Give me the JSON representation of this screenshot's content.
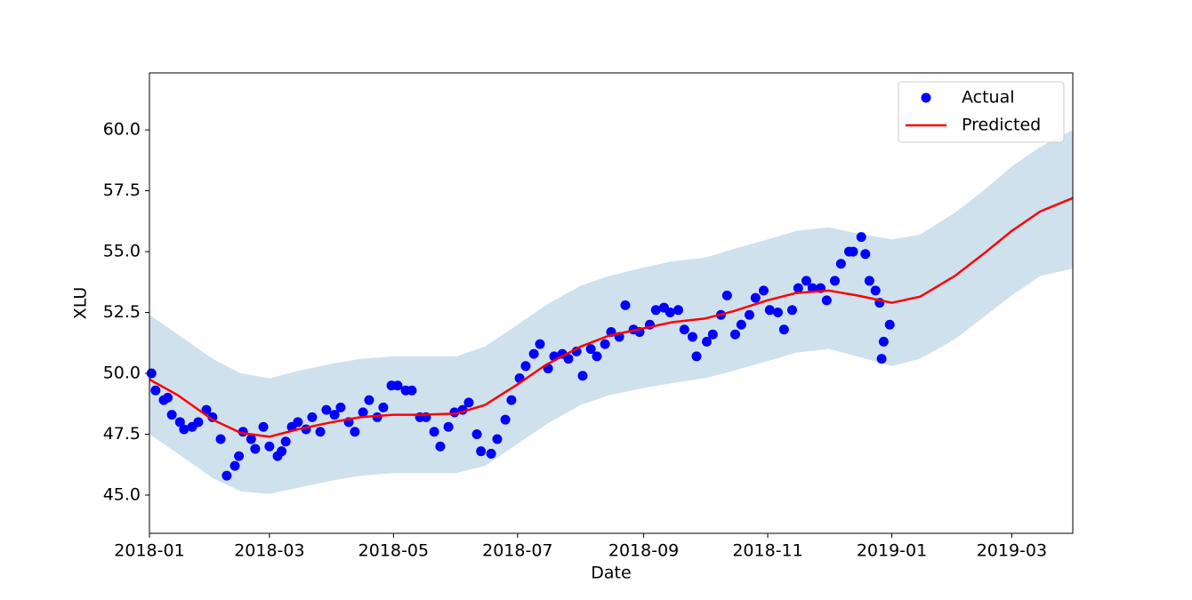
{
  "chart_data": {
    "type": "line",
    "xlabel": "Date",
    "ylabel": "XLU",
    "xlim": [
      "2018-01-01",
      "2019-03-31"
    ],
    "ylim": [
      43.43,
      62.34
    ],
    "xticks": [
      {
        "value": "2018-01-01",
        "label": "2018-01"
      },
      {
        "value": "2018-03-01",
        "label": "2018-03"
      },
      {
        "value": "2018-05-01",
        "label": "2018-05"
      },
      {
        "value": "2018-07-01",
        "label": "2018-07"
      },
      {
        "value": "2018-09-01",
        "label": "2018-09"
      },
      {
        "value": "2018-11-01",
        "label": "2018-11"
      },
      {
        "value": "2019-01-01",
        "label": "2019-01"
      },
      {
        "value": "2019-03-01",
        "label": "2019-03"
      }
    ],
    "yticks": [
      {
        "value": 45,
        "label": "45.0"
      },
      {
        "value": 47.5,
        "label": "47.5"
      },
      {
        "value": 50,
        "label": "50.0"
      },
      {
        "value": 52.5,
        "label": "52.5"
      },
      {
        "value": 55,
        "label": "55.0"
      },
      {
        "value": 57.5,
        "label": "57.5"
      },
      {
        "value": 60,
        "label": "60.0"
      }
    ],
    "legend": "upper right",
    "series": [
      {
        "name": "Actual",
        "type": "scatter",
        "color": "#0000ff",
        "x": [
          "2018-01-02",
          "2018-01-04",
          "2018-01-08",
          "2018-01-10",
          "2018-01-12",
          "2018-01-16",
          "2018-01-18",
          "2018-01-22",
          "2018-01-25",
          "2018-01-29",
          "2018-02-01",
          "2018-02-05",
          "2018-02-08",
          "2018-02-12",
          "2018-02-14",
          "2018-02-16",
          "2018-02-20",
          "2018-02-22",
          "2018-02-26",
          "2018-03-01",
          "2018-03-05",
          "2018-03-07",
          "2018-03-09",
          "2018-03-12",
          "2018-03-15",
          "2018-03-19",
          "2018-03-22",
          "2018-03-26",
          "2018-03-29",
          "2018-04-02",
          "2018-04-05",
          "2018-04-09",
          "2018-04-12",
          "2018-04-16",
          "2018-04-19",
          "2018-04-23",
          "2018-04-26",
          "2018-04-30",
          "2018-05-03",
          "2018-05-07",
          "2018-05-10",
          "2018-05-14",
          "2018-05-17",
          "2018-05-21",
          "2018-05-24",
          "2018-05-28",
          "2018-05-31",
          "2018-06-04",
          "2018-06-07",
          "2018-06-11",
          "2018-06-13",
          "2018-06-18",
          "2018-06-21",
          "2018-06-25",
          "2018-06-28",
          "2018-07-02",
          "2018-07-05",
          "2018-07-09",
          "2018-07-12",
          "2018-07-16",
          "2018-07-19",
          "2018-07-23",
          "2018-07-26",
          "2018-07-30",
          "2018-08-02",
          "2018-08-06",
          "2018-08-09",
          "2018-08-13",
          "2018-08-16",
          "2018-08-20",
          "2018-08-23",
          "2018-08-27",
          "2018-08-30",
          "2018-09-04",
          "2018-09-07",
          "2018-09-11",
          "2018-09-14",
          "2018-09-18",
          "2018-09-21",
          "2018-09-25",
          "2018-09-27",
          "2018-10-02",
          "2018-10-05",
          "2018-10-09",
          "2018-10-12",
          "2018-10-16",
          "2018-10-19",
          "2018-10-23",
          "2018-10-26",
          "2018-10-30",
          "2018-11-02",
          "2018-11-06",
          "2018-11-09",
          "2018-11-13",
          "2018-11-16",
          "2018-11-20",
          "2018-11-23",
          "2018-11-27",
          "2018-11-30",
          "2018-12-04",
          "2018-12-07",
          "2018-12-11",
          "2018-12-13",
          "2018-12-17",
          "2018-12-19",
          "2018-12-21",
          "2018-12-24",
          "2018-12-26",
          "2018-12-27",
          "2018-12-28",
          "2018-12-31"
        ],
        "values": [
          50.0,
          49.3,
          48.9,
          49.0,
          48.3,
          48.0,
          47.7,
          47.8,
          48.0,
          48.5,
          48.2,
          47.3,
          45.8,
          46.2,
          46.6,
          47.6,
          47.3,
          46.9,
          47.8,
          47.0,
          46.6,
          46.8,
          47.2,
          47.8,
          48.0,
          47.7,
          48.2,
          47.6,
          48.5,
          48.3,
          48.6,
          48.0,
          47.6,
          48.4,
          48.9,
          48.2,
          48.6,
          49.5,
          49.5,
          49.3,
          49.3,
          48.2,
          48.2,
          47.6,
          47.0,
          47.8,
          48.4,
          48.5,
          48.8,
          47.5,
          46.8,
          46.7,
          47.3,
          48.1,
          48.9,
          49.8,
          50.3,
          50.8,
          51.2,
          50.2,
          50.7,
          50.8,
          50.6,
          50.9,
          49.9,
          51.0,
          50.7,
          51.2,
          51.7,
          51.5,
          52.8,
          51.8,
          51.7,
          52.0,
          52.6,
          52.7,
          52.5,
          52.6,
          51.8,
          51.5,
          50.7,
          51.3,
          51.6,
          52.4,
          53.2,
          51.6,
          52.0,
          52.4,
          53.1,
          53.4,
          52.6,
          52.5,
          51.8,
          52.6,
          53.5,
          53.8,
          53.5,
          53.5,
          53.0,
          53.8,
          54.5,
          55.0,
          55.0,
          55.6,
          54.9,
          53.8,
          53.4,
          52.9,
          50.6,
          51.3,
          52.0
        ]
      },
      {
        "name": "Predicted",
        "type": "line",
        "color": "#ff0000",
        "band_color": "#d0e1ee",
        "x": [
          "2018-01-01",
          "2018-01-15",
          "2018-02-01",
          "2018-02-15",
          "2018-03-01",
          "2018-03-15",
          "2018-04-01",
          "2018-04-15",
          "2018-05-01",
          "2018-05-15",
          "2018-06-01",
          "2018-06-15",
          "2018-07-01",
          "2018-07-15",
          "2018-08-01",
          "2018-08-15",
          "2018-09-01",
          "2018-09-15",
          "2018-10-01",
          "2018-10-15",
          "2018-11-01",
          "2018-11-15",
          "2018-12-01",
          "2018-12-15",
          "2019-01-01",
          "2019-01-15",
          "2019-02-01",
          "2019-02-15",
          "2019-03-01",
          "2019-03-15",
          "2019-03-31"
        ],
        "values": [
          49.75,
          49.1,
          48.1,
          47.55,
          47.4,
          47.7,
          48.0,
          48.2,
          48.3,
          48.3,
          48.35,
          48.7,
          49.55,
          50.35,
          51.1,
          51.55,
          51.85,
          52.1,
          52.25,
          52.55,
          53.0,
          53.3,
          53.4,
          53.2,
          52.9,
          53.15,
          54.0,
          54.9,
          55.85,
          56.65,
          57.2
        ],
        "upper": [
          52.4,
          51.6,
          50.6,
          50.0,
          49.8,
          50.1,
          50.4,
          50.6,
          50.7,
          50.7,
          50.7,
          51.1,
          52.0,
          52.8,
          53.6,
          54.0,
          54.35,
          54.6,
          54.75,
          55.1,
          55.5,
          55.85,
          56.0,
          55.75,
          55.5,
          55.7,
          56.6,
          57.5,
          58.5,
          59.3,
          60.0
        ],
        "lower": [
          47.5,
          46.7,
          45.7,
          45.15,
          45.05,
          45.3,
          45.6,
          45.8,
          45.9,
          45.9,
          45.9,
          46.2,
          47.1,
          47.9,
          48.7,
          49.1,
          49.4,
          49.6,
          49.8,
          50.1,
          50.5,
          50.85,
          51.0,
          50.7,
          50.3,
          50.6,
          51.4,
          52.3,
          53.2,
          54.0,
          54.3
        ]
      }
    ]
  }
}
